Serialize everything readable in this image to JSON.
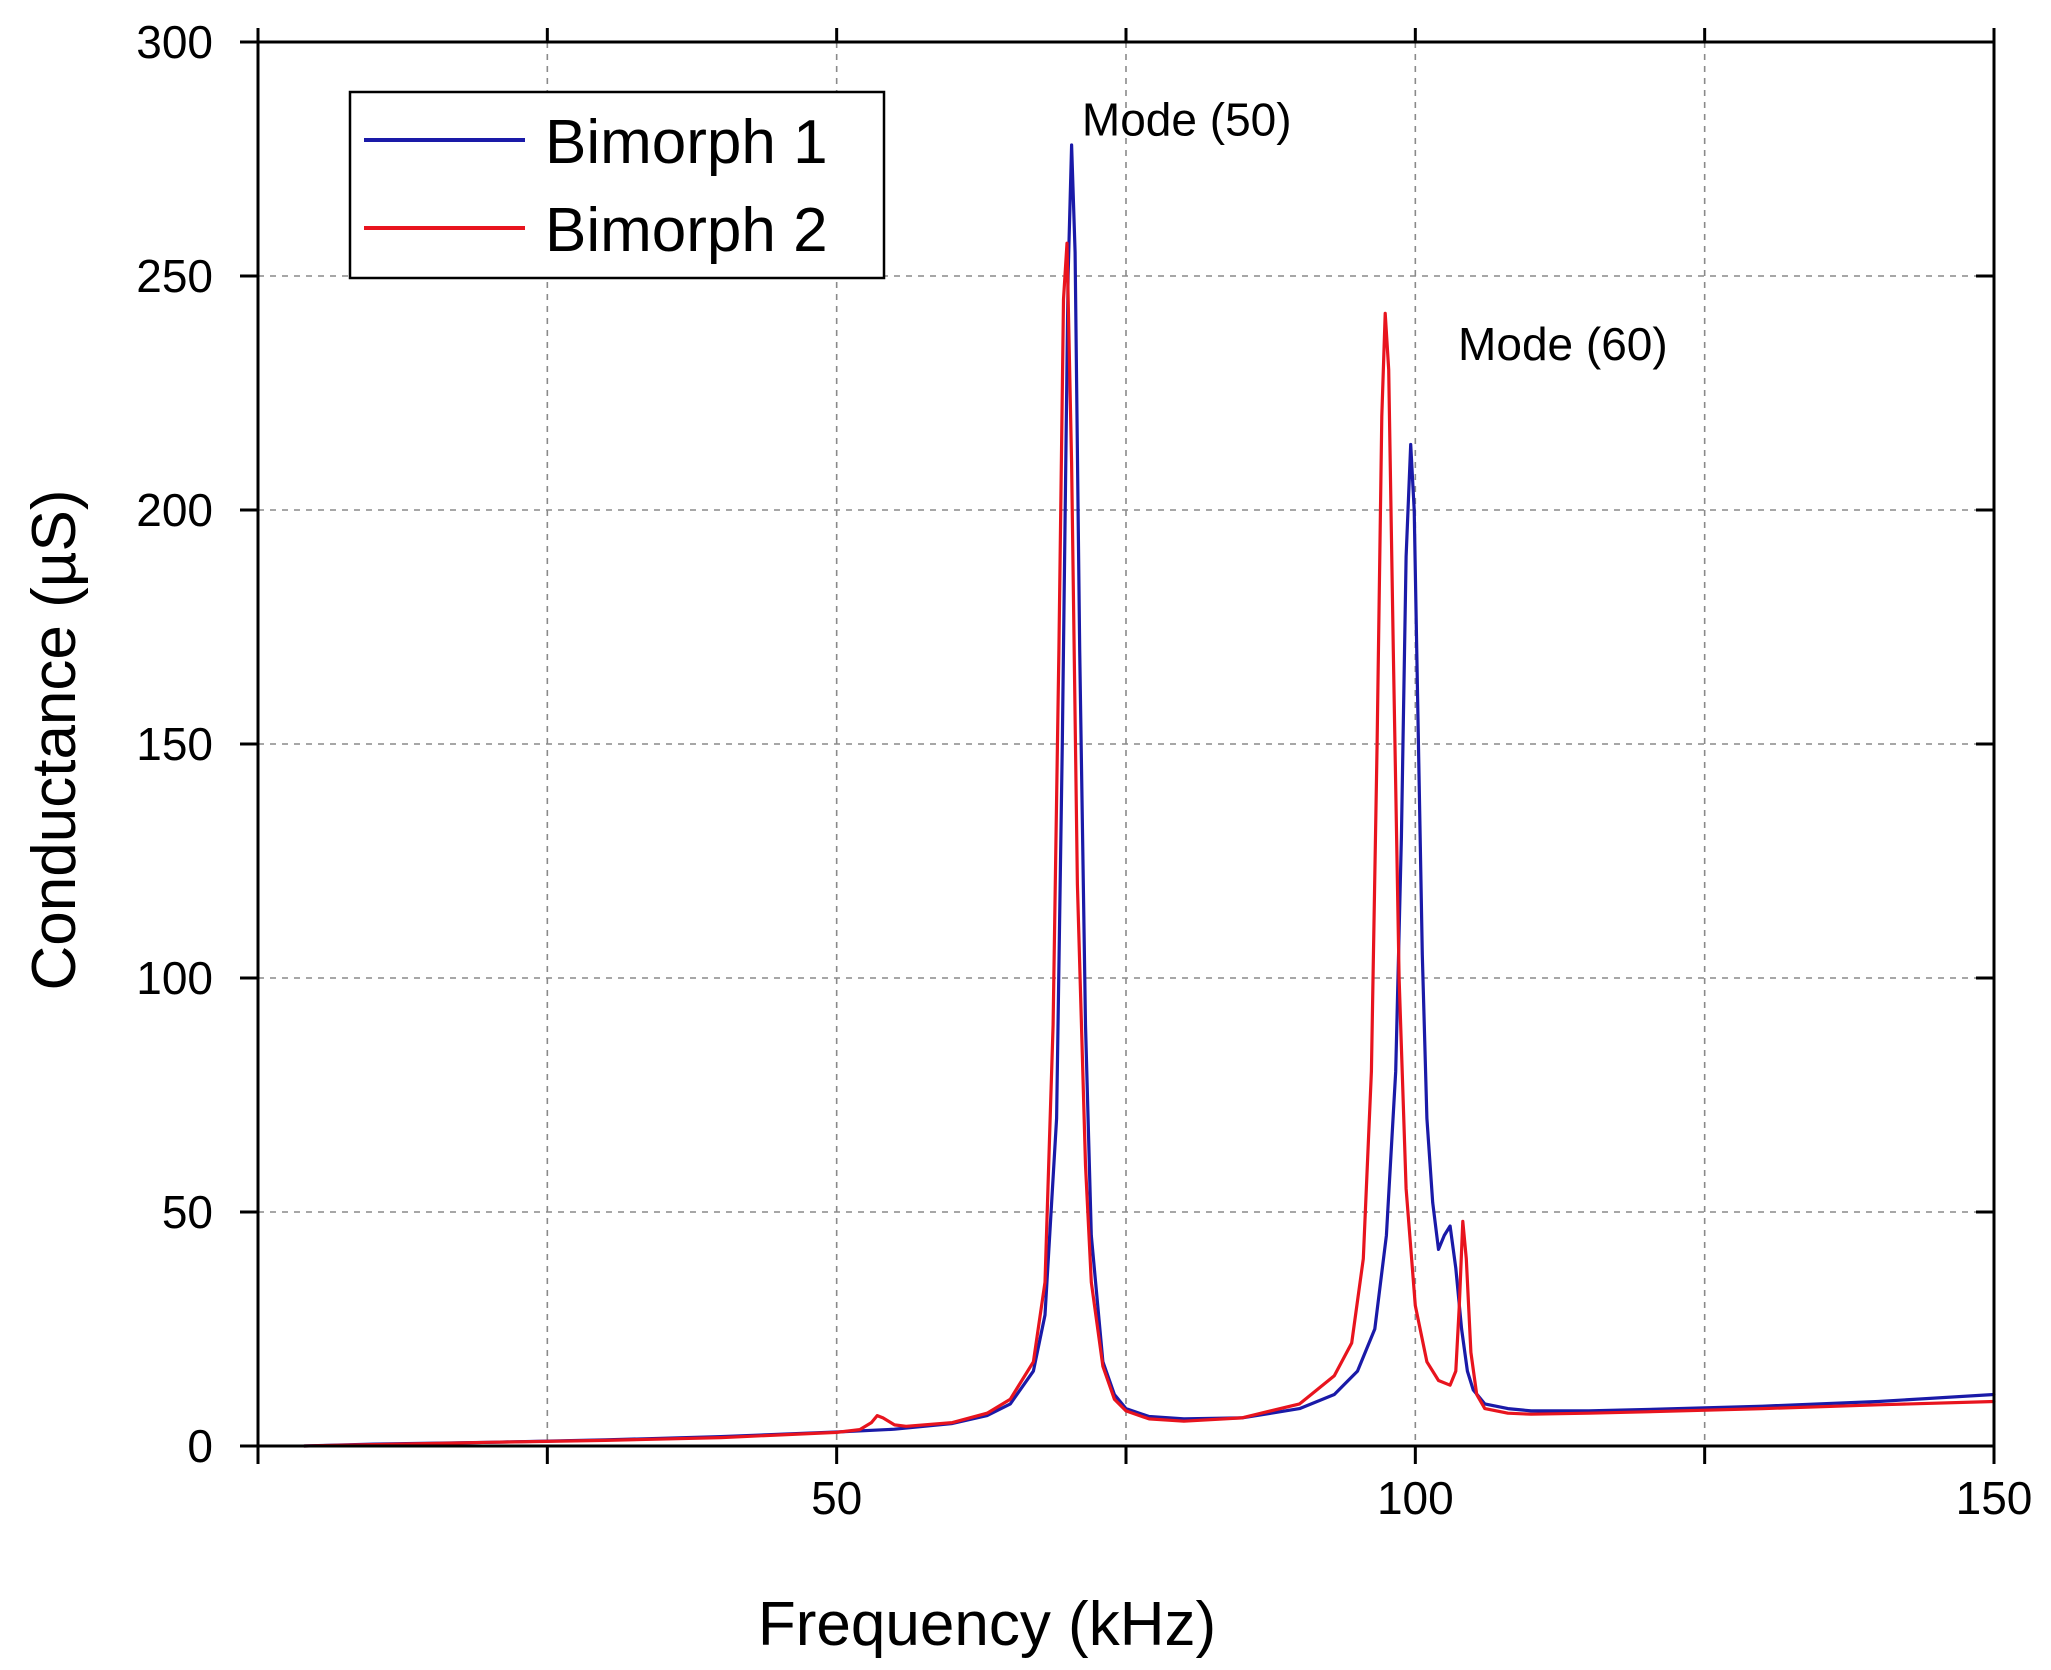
{
  "chart_data": {
    "type": "line",
    "title": "",
    "xlabel": "Frequency (kHz)",
    "ylabel": "Conductance (µS)",
    "xlim": [
      0,
      150
    ],
    "ylim": [
      0,
      300
    ],
    "x_ticks": [
      0,
      25,
      50,
      75,
      100,
      125,
      150
    ],
    "x_tick_labels": [
      "",
      "",
      "50",
      "",
      "100",
      "",
      "150"
    ],
    "y_ticks": [
      0,
      50,
      100,
      150,
      200,
      250,
      300
    ],
    "y_tick_labels": [
      "0",
      "50",
      "100",
      "150",
      "200",
      "250",
      "300"
    ],
    "grid": true,
    "legend_position": "top-left",
    "series": [
      {
        "name": "Bimorph 1",
        "color": "#1a1aa8",
        "x": [
          4,
          10,
          20,
          30,
          40,
          50,
          55,
          60,
          63,
          65,
          67,
          68,
          69,
          69.5,
          70,
          70.3,
          70.6,
          71,
          71.5,
          72,
          73,
          74,
          75,
          77,
          80,
          85,
          90,
          93,
          95,
          96.5,
          97.5,
          98.3,
          98.8,
          99.2,
          99.6,
          99.9,
          100.2,
          100.6,
          101,
          101.5,
          102,
          102.5,
          103,
          103.5,
          104,
          104.5,
          105,
          106,
          108,
          110,
          115,
          120,
          130,
          140,
          150
        ],
        "y": [
          0,
          0.4,
          0.8,
          1.3,
          2,
          3,
          3.6,
          4.8,
          6.5,
          9,
          16,
          28,
          70,
          150,
          250,
          278,
          255,
          170,
          90,
          45,
          18,
          11,
          8,
          6.3,
          5.8,
          6,
          8,
          11,
          16,
          25,
          45,
          80,
          130,
          190,
          214,
          200,
          160,
          105,
          70,
          52,
          42,
          45,
          47,
          38,
          25,
          16,
          12,
          9,
          8,
          7.5,
          7.5,
          7.8,
          8.5,
          9.5,
          11
        ]
      },
      {
        "name": "Bimorph 2",
        "color": "#e8141e",
        "x": [
          4,
          10,
          20,
          30,
          40,
          50,
          52,
          53,
          53.5,
          54,
          55,
          56,
          60,
          63,
          65,
          67,
          68,
          68.7,
          69.2,
          69.6,
          69.9,
          70.3,
          70.8,
          71.5,
          72,
          73,
          74,
          75,
          77,
          80,
          85,
          90,
          93,
          94.5,
          95.5,
          96.2,
          96.7,
          97.1,
          97.4,
          97.7,
          98.1,
          98.6,
          99.2,
          100,
          101,
          102,
          103,
          103.5,
          103.8,
          104.1,
          104.4,
          104.8,
          105.3,
          106,
          108,
          110,
          115,
          120,
          130,
          140,
          150
        ],
        "y": [
          0,
          0.3,
          0.8,
          1.2,
          1.8,
          2.9,
          3.5,
          5,
          6.5,
          6,
          4.5,
          4.2,
          5,
          7,
          10,
          18,
          35,
          90,
          170,
          245,
          257,
          210,
          120,
          60,
          35,
          17,
          10,
          7.5,
          5.8,
          5.3,
          6,
          9,
          15,
          22,
          40,
          80,
          150,
          220,
          242,
          230,
          170,
          100,
          55,
          30,
          18,
          14,
          13,
          16,
          30,
          48,
          40,
          20,
          11,
          8,
          7,
          6.8,
          7,
          7.3,
          8,
          8.8,
          9.5
        ]
      }
    ],
    "annotations": [
      {
        "text": "Mode (50)",
        "x": 70.5,
        "y": 280
      },
      {
        "text": "Mode (60)",
        "x": 103,
        "y": 232
      }
    ]
  }
}
